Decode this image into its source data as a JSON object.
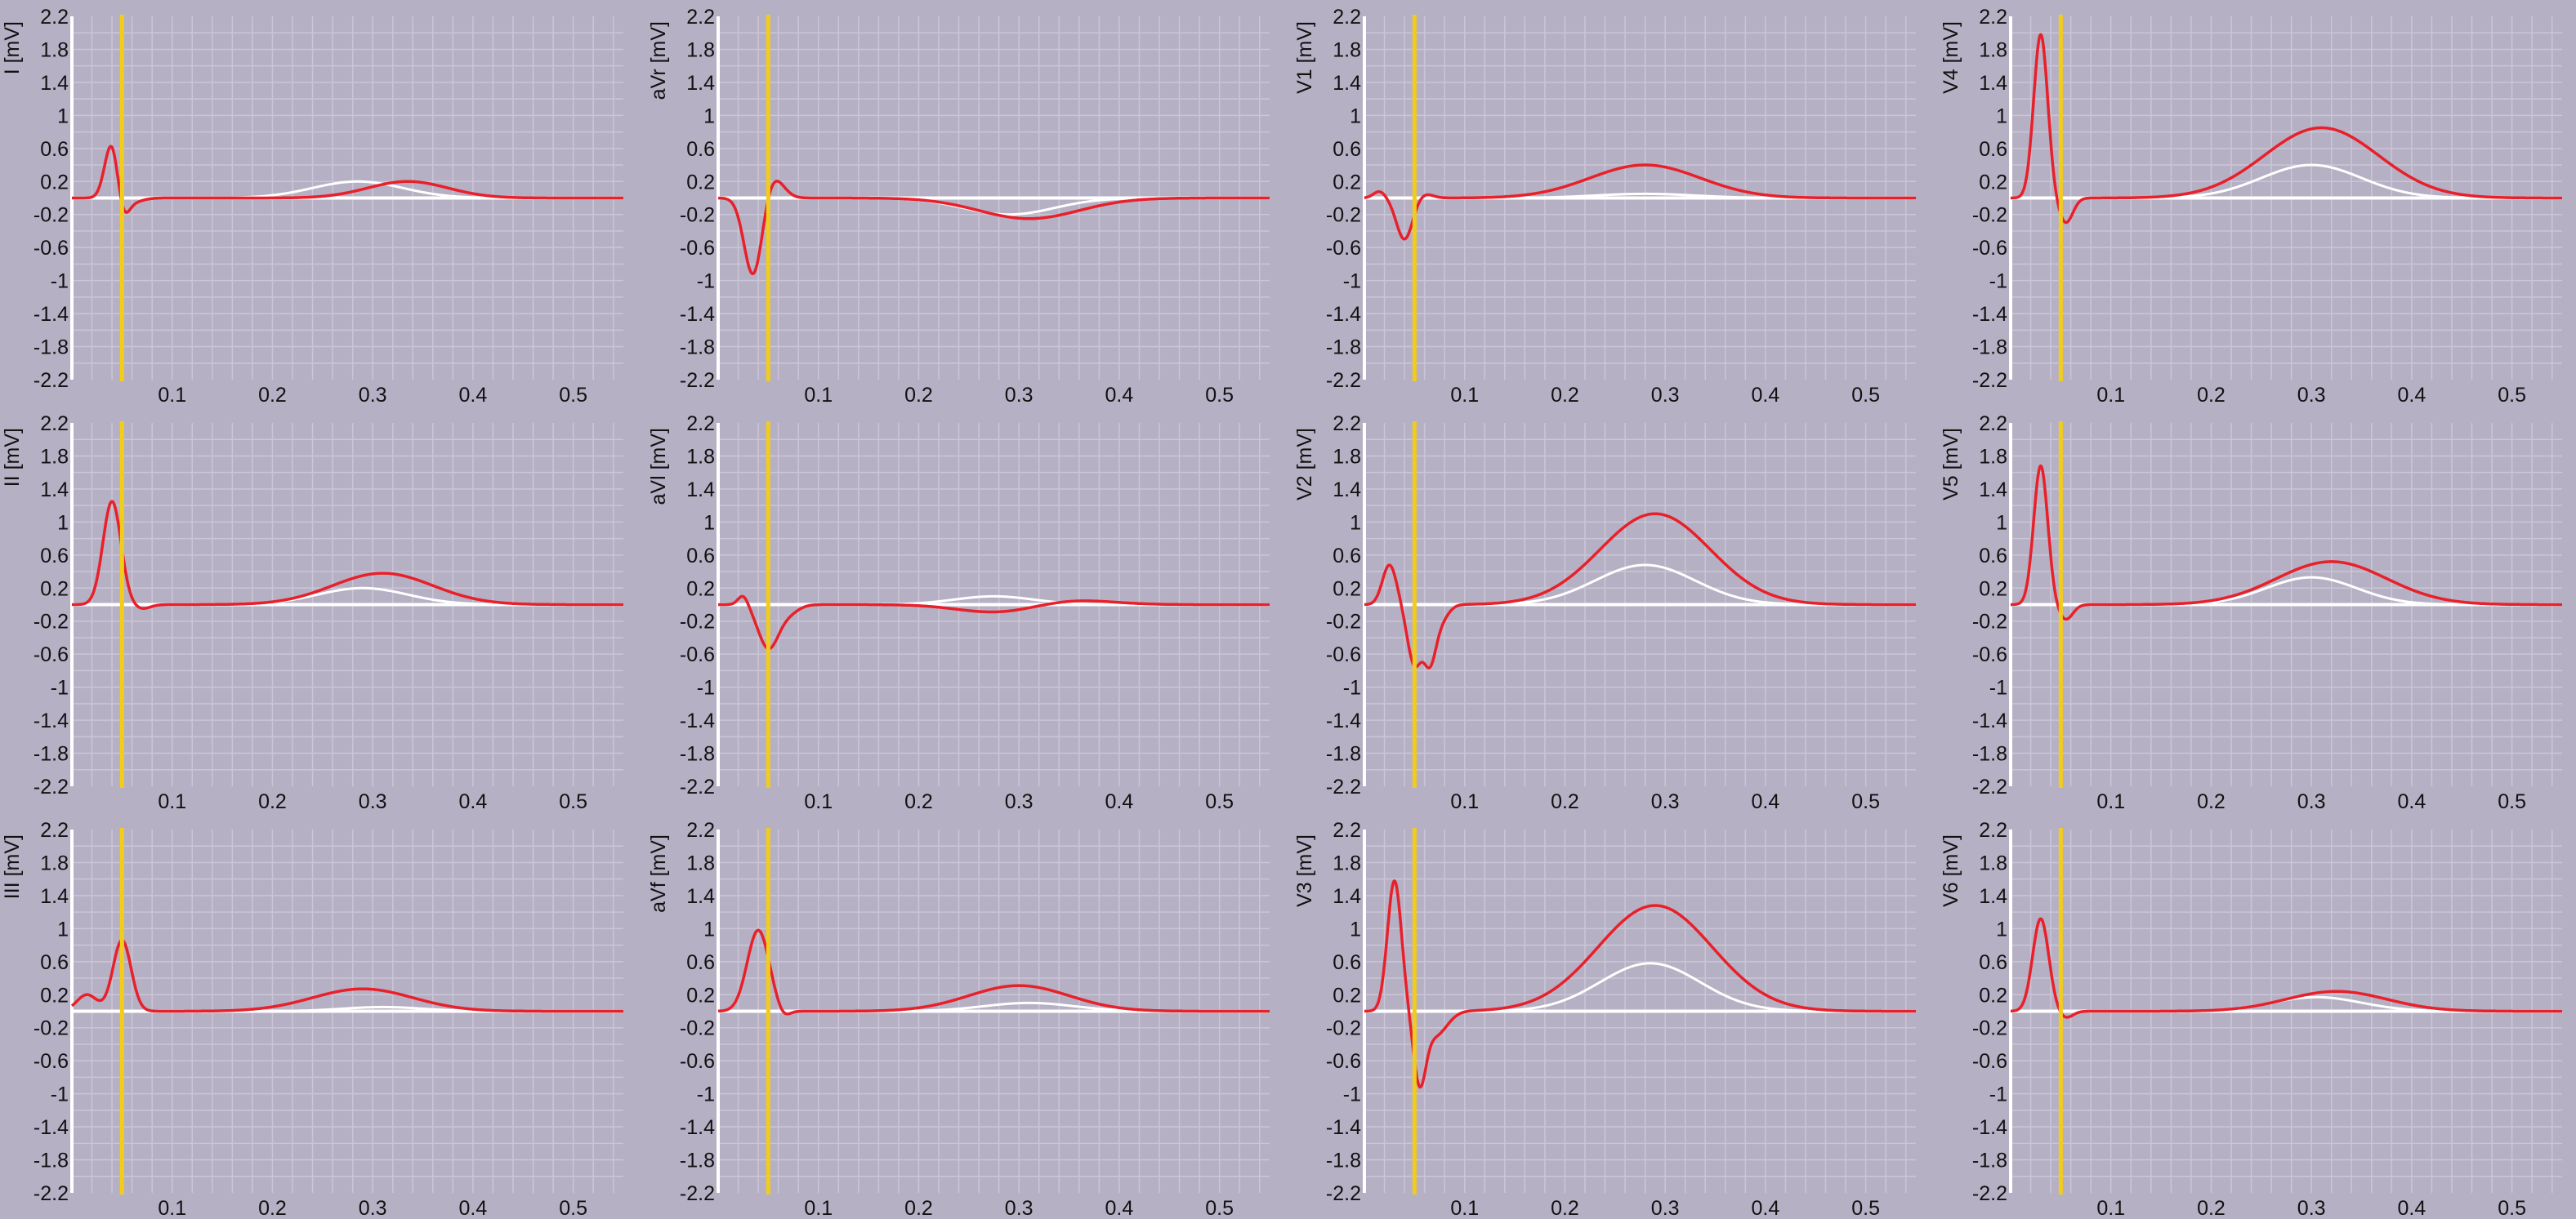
{
  "colors": {
    "background": "#b6b0c4",
    "grid": "#cbc6d7",
    "baseline": "#ffffff",
    "measured_trace": "#e8202a",
    "reference_trace": "#ffffff",
    "marker_line": "#f2cc1a",
    "axis_line": "#ffffff",
    "text": "#111111"
  },
  "chart_data": {
    "type": "line",
    "layout": "3 rows x 4 columns (columns: I/II/III, aVr/aVl/aVf, V1/V2/V3, V4/V5/V6)",
    "x": {
      "range": [
        0,
        0.55
      ],
      "ticks": [
        "0.1",
        "0.2",
        "0.3",
        "0.4",
        "0.5"
      ]
    },
    "y": {
      "range": [
        -2.2,
        2.2
      ],
      "ticks": [
        "2.2",
        "1.8",
        "1.4",
        "1",
        "0.6",
        "0.2",
        "-0.2",
        "-0.6",
        "-1",
        "-1.4",
        "-1.8",
        "-2.2"
      ]
    },
    "grid": true,
    "marker_x": 0.05,
    "series_styles": {
      "measured": "red line",
      "reference": "white line"
    },
    "leads": [
      {
        "label": "I [mV]",
        "measured": {
          "waves": [
            [
              0.04,
              0.69,
              0.007
            ],
            [
              0.05,
              -0.28,
              0.006
            ],
            [
              0.06,
              -0.05,
              0.01
            ],
            [
              0.335,
              0.2,
              0.04
            ]
          ]
        },
        "reference": {
          "waves": [
            [
              0.285,
              0.2,
              0.045
            ]
          ]
        }
      },
      {
        "label": "II [mV]",
        "measured": {
          "waves": [
            [
              0.04,
              1.25,
              0.009
            ],
            [
              0.07,
              -0.05,
              0.008
            ],
            [
              0.31,
              0.38,
              0.05
            ]
          ]
        },
        "reference": {
          "waves": [
            [
              0.29,
              0.2,
              0.045
            ]
          ]
        }
      },
      {
        "label": "III [mV]",
        "measured": {
          "waves": [
            [
              0.015,
              0.2,
              0.01
            ],
            [
              0.05,
              0.86,
              0.009
            ],
            [
              0.29,
              0.27,
              0.05
            ]
          ]
        },
        "reference": {
          "waves": [
            [
              0.31,
              0.05,
              0.04
            ]
          ]
        }
      },
      {
        "label": "aVr [mV]",
        "measured": {
          "waves": [
            [
              0.035,
              -0.95,
              0.009
            ],
            [
              0.055,
              0.25,
              0.01
            ],
            [
              0.31,
              -0.25,
              0.05
            ]
          ]
        },
        "reference": {
          "waves": [
            [
              0.29,
              -0.2,
              0.045
            ]
          ]
        }
      },
      {
        "label": "aVl [mV]",
        "measured": {
          "waves": [
            [
              0.025,
              0.12,
              0.005
            ],
            [
              0.05,
              -0.52,
              0.01
            ],
            [
              0.07,
              -0.1,
              0.01
            ],
            [
              0.28,
              -0.1,
              0.04
            ],
            [
              0.35,
              0.06,
              0.04
            ]
          ]
        },
        "reference": {
          "waves": [
            [
              0.275,
              0.1,
              0.04
            ]
          ]
        }
      },
      {
        "label": "aVf [mV]",
        "measured": {
          "waves": [
            [
              0.04,
              0.98,
              0.011
            ],
            [
              0.065,
              -0.08,
              0.006
            ],
            [
              0.3,
              0.31,
              0.05
            ]
          ]
        },
        "reference": {
          "waves": [
            [
              0.31,
              0.1,
              0.045
            ]
          ]
        }
      },
      {
        "label": "V1 [mV]",
        "measured": {
          "waves": [
            [
              0.015,
              0.08,
              0.006
            ],
            [
              0.04,
              -0.5,
              0.008
            ],
            [
              0.06,
              0.05,
              0.008
            ],
            [
              0.28,
              0.4,
              0.055
            ]
          ]
        },
        "reference": {
          "waves": [
            [
              0.28,
              0.05,
              0.05
            ]
          ]
        }
      },
      {
        "label": "V2 [mV]",
        "measured": {
          "waves": [
            [
              0.025,
              0.48,
              0.007
            ],
            [
              0.05,
              -0.72,
              0.007
            ],
            [
              0.065,
              -0.6,
              0.006
            ],
            [
              0.075,
              -0.2,
              0.008
            ],
            [
              0.29,
              1.1,
              0.055
            ]
          ]
        },
        "reference": {
          "waves": [
            [
              0.28,
              0.48,
              0.05
            ]
          ]
        }
      },
      {
        "label": "V3 [mV]",
        "measured": {
          "waves": [
            [
              0.03,
              1.58,
              0.007
            ],
            [
              0.055,
              -0.78,
              0.006
            ],
            [
              0.07,
              -0.3,
              0.012
            ],
            [
              0.29,
              1.28,
              0.057
            ]
          ]
        },
        "reference": {
          "waves": [
            [
              0.285,
              0.58,
              0.05
            ]
          ]
        }
      },
      {
        "label": "V4 [mV]",
        "measured": {
          "waves": [
            [
              0.03,
              1.98,
              0.007
            ],
            [
              0.055,
              -0.3,
              0.007
            ],
            [
              0.31,
              0.85,
              0.057
            ]
          ]
        },
        "reference": {
          "waves": [
            [
              0.3,
              0.4,
              0.05
            ]
          ]
        }
      },
      {
        "label": "V5 [mV]",
        "measured": {
          "waves": [
            [
              0.03,
              1.68,
              0.007
            ],
            [
              0.055,
              -0.18,
              0.007
            ],
            [
              0.32,
              0.52,
              0.055
            ]
          ]
        },
        "reference": {
          "waves": [
            [
              0.3,
              0.33,
              0.045
            ]
          ]
        }
      },
      {
        "label": "V6 [mV]",
        "measured": {
          "waves": [
            [
              0.03,
              1.12,
              0.008
            ],
            [
              0.055,
              -0.08,
              0.007
            ],
            [
              0.325,
              0.24,
              0.05
            ]
          ]
        },
        "reference": {
          "waves": [
            [
              0.305,
              0.17,
              0.045
            ]
          ]
        }
      }
    ]
  }
}
